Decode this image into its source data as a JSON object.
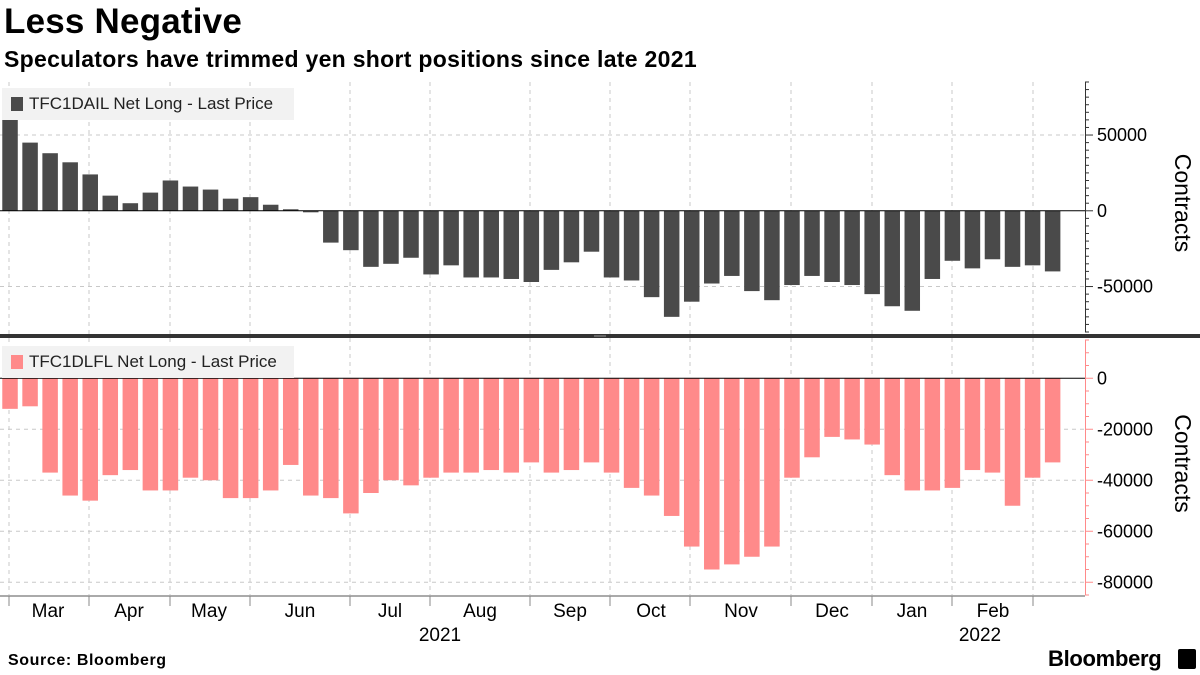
{
  "header": {
    "title": "Less Negative",
    "subtitle": "Speculators have trimmed yen short positions since late 2021"
  },
  "footer": {
    "source": "Source: Bloomberg",
    "brand": "Bloomberg"
  },
  "colors": {
    "top_series": "#4a4a4a",
    "bottom_series": "#ff8a8a",
    "divider": "#333333",
    "grid": "#c8c8c8"
  },
  "chart_data": {
    "type": "bar",
    "x_axis": {
      "tick_labels": [
        "Mar",
        "Apr",
        "May",
        "Jun",
        "Jul",
        "Aug",
        "Sep",
        "Oct",
        "Nov",
        "Dec",
        "Jan",
        "Feb"
      ],
      "year_labels": [
        "2021",
        "2022"
      ]
    },
    "panels": [
      {
        "name": "TFC1DAIL Net Long - Last Price",
        "ylabel": "Contracts",
        "ylim": [
          -80000,
          85000
        ],
        "yticks": [
          50000,
          0,
          -50000
        ],
        "ytick_labels": [
          "50000",
          "0",
          "-50000"
        ],
        "values": [
          60000,
          45000,
          38000,
          32000,
          24000,
          10000,
          5000,
          12000,
          20000,
          16000,
          14000,
          8000,
          9000,
          4000,
          1000,
          -1000,
          -21000,
          -26000,
          -37000,
          -35000,
          -31000,
          -42000,
          -36000,
          -44000,
          -44000,
          -45000,
          -47000,
          -39000,
          -34000,
          -27000,
          -44000,
          -46000,
          -57000,
          -70000,
          -60000,
          -48000,
          -43000,
          -53000,
          -59000,
          -49000,
          -43000,
          -47000,
          -49000,
          -55000,
          -63000,
          -66000,
          -45000,
          -33000,
          -38000,
          -32000,
          -37000,
          -36000,
          -40000
        ]
      },
      {
        "name": "TFC1DLFL Net Long - Last Price",
        "ylabel": "Contracts",
        "ylim": [
          -85000,
          15000
        ],
        "yticks": [
          0,
          -20000,
          -40000,
          -60000,
          -80000
        ],
        "ytick_labels": [
          "0",
          "-20000",
          "-40000",
          "-60000",
          "-80000"
        ],
        "values": [
          -12000,
          -11000,
          -37000,
          -46000,
          -48000,
          -38000,
          -36000,
          -44000,
          -44000,
          -39000,
          -40000,
          -47000,
          -47000,
          -44000,
          -34000,
          -46000,
          -47000,
          -53000,
          -45000,
          -40000,
          -42000,
          -39000,
          -37000,
          -37000,
          -36000,
          -37000,
          -33000,
          -37000,
          -36000,
          -33000,
          -37000,
          -43000,
          -46000,
          -54000,
          -66000,
          -75000,
          -73000,
          -70000,
          -66000,
          -39000,
          -31000,
          -23000,
          -24000,
          -26000,
          -38000,
          -44000,
          -44000,
          -43000,
          -36000,
          -37000,
          -50000,
          -39000,
          -33000
        ]
      }
    ]
  }
}
